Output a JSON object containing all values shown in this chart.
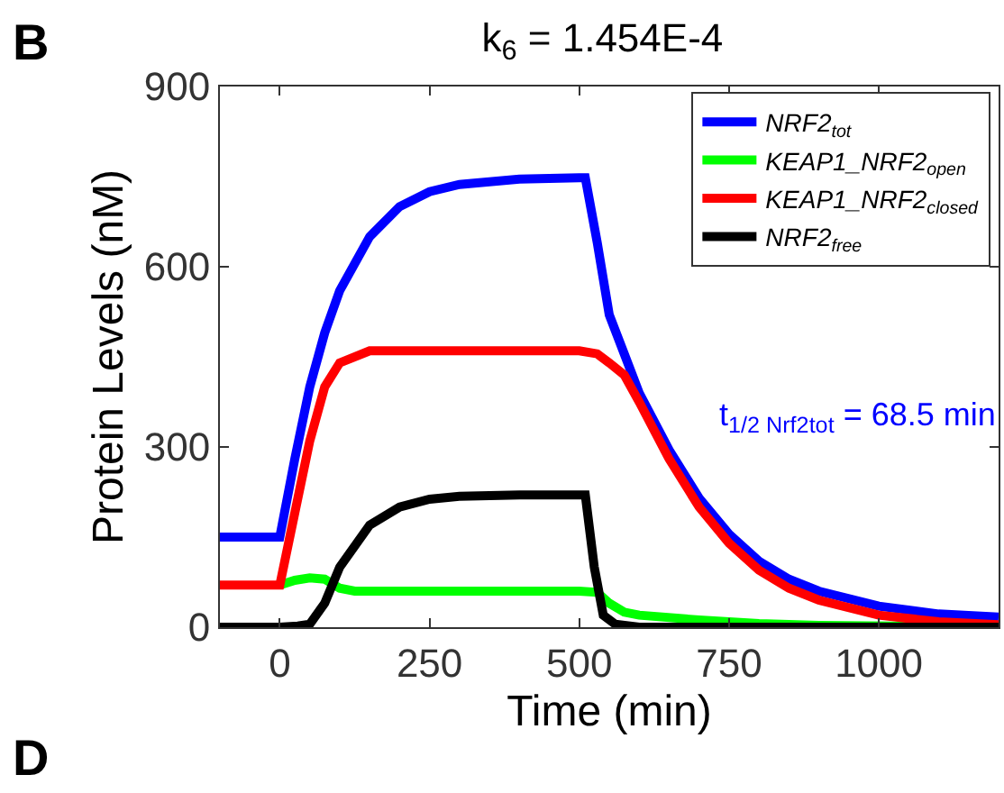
{
  "chart_data": {
    "type": "line",
    "title": "k$_{6}$ = 1.454E-4",
    "xlabel": "Time (min)",
    "ylabel": "Protein Levels (nM)",
    "xlim": [
      -100,
      1200
    ],
    "xticks": [
      0,
      250,
      500,
      750,
      1000
    ],
    "ylim": [
      0,
      900
    ],
    "yticks": [
      0,
      300,
      600,
      900
    ],
    "legend": "top right",
    "marker": "none",
    "line_style": "solid",
    "annotations": [
      "B",
      "D",
      "t$_{1/2 Nrf2tot}$ = 68.5 min"
    ],
    "series": [
      {
        "name": "NRF2$_{tot}$",
        "color": "#0000ff",
        "x": [
          -100,
          0,
          25,
          50,
          75,
          100,
          150,
          200,
          250,
          300,
          400,
          500,
          510,
          530,
          550,
          575,
          600,
          650,
          700,
          750,
          800,
          850,
          900,
          1000,
          1100,
          1200
        ],
        "values": [
          150,
          150,
          280,
          400,
          490,
          560,
          650,
          700,
          725,
          737,
          746,
          748,
          748,
          640,
          520,
          455,
          390,
          295,
          215,
          155,
          110,
          80,
          60,
          35,
          22,
          17
        ]
      },
      {
        "name": "KEAP1_NRF2$_{open}$",
        "color": "#00ff00",
        "x": [
          0,
          25,
          50,
          75,
          100,
          125,
          500,
          530,
          550,
          575,
          600,
          700,
          800,
          900,
          1200
        ],
        "values": [
          70,
          78,
          82,
          80,
          65,
          60,
          60,
          58,
          40,
          25,
          20,
          12,
          6,
          3,
          0
        ]
      },
      {
        "name": "KEAP1_NRF2$_{closed}$",
        "color": "#ff0000",
        "x": [
          -100,
          0,
          25,
          50,
          75,
          100,
          150,
          500,
          530,
          550,
          575,
          600,
          650,
          700,
          750,
          800,
          850,
          900,
          1000,
          1100,
          1200
        ],
        "values": [
          70,
          70,
          190,
          310,
          400,
          440,
          460,
          460,
          455,
          440,
          420,
          375,
          280,
          200,
          140,
          95,
          65,
          45,
          20,
          9,
          4
        ]
      },
      {
        "name": "NRF2$_{free}$",
        "color": "#000000",
        "x": [
          -100,
          0,
          30,
          50,
          75,
          100,
          150,
          200,
          250,
          300,
          400,
          500,
          510,
          525,
          540,
          560,
          600,
          1200
        ],
        "values": [
          0,
          0,
          2,
          5,
          40,
          100,
          170,
          200,
          213,
          218,
          220,
          220,
          220,
          100,
          20,
          5,
          0,
          0
        ]
      }
    ]
  }
}
